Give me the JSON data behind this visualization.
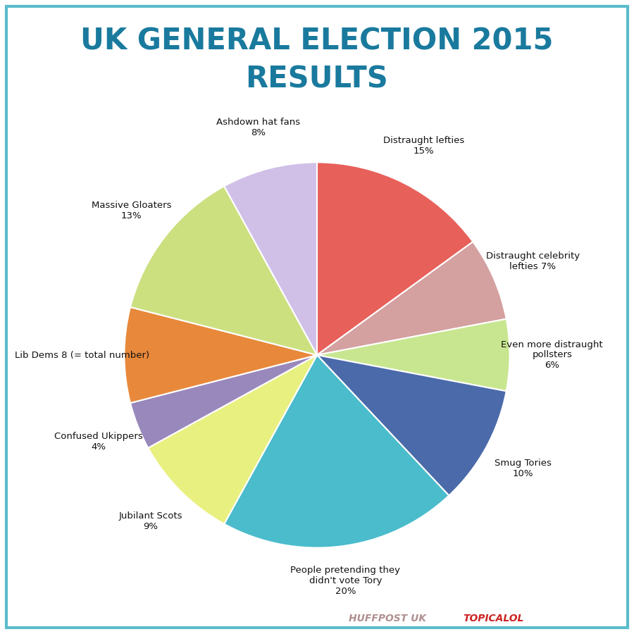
{
  "title_line1": "UK GENERAL ELECTION 2015",
  "title_line2": "RESULTS",
  "title_color": "#1a7a9e",
  "background_color": "#ffffff",
  "border_color": "#5bbccc",
  "labels": [
    "Distraught lefties\n15%",
    "Distraught celebrity\nlefties 7%",
    "Even more distraught\npollsters\n6%",
    "Smug Tories\n10%",
    "People pretending they\ndidn't vote Tory\n20%",
    "Jubilant Scots\n9%",
    "Confused Ukippers\n4%",
    "Lib Dems 8 (= total number)",
    "Massive Gloaters\n13%",
    "Ashdown hat fans\n8%"
  ],
  "sizes": [
    15,
    7,
    6,
    10,
    20,
    9,
    4,
    8,
    13,
    8
  ],
  "colors": [
    "#e8605a",
    "#d4a0a0",
    "#c8e690",
    "#4a6aaa",
    "#4abccc",
    "#e8f080",
    "#9988bb",
    "#e8883a",
    "#cce080",
    "#d0c0e8"
  ],
  "startangle": 90,
  "footer_text1": "HUFFPOST UK ",
  "footer_text2": "TOPICALOL",
  "footer_color1": "#b09090",
  "footer_color2": "#cc2222"
}
